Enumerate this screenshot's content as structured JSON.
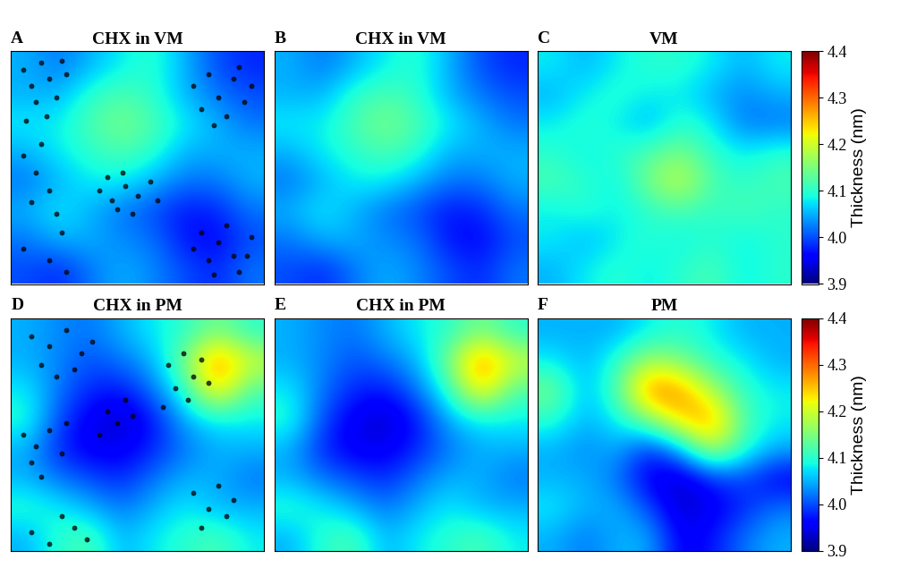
{
  "chart_data": [
    {
      "type": "heatmap",
      "panel": "A",
      "title": "CHX in VM",
      "xlim": [
        0,
        1
      ],
      "ylim": [
        0,
        1
      ],
      "tick_labels": false,
      "cells": [
        [
          4.05,
          4.02,
          4.05,
          4.08,
          4.1,
          4.05,
          4.0,
          3.98
        ],
        [
          4.05,
          4.05,
          4.1,
          4.12,
          4.1,
          4.05,
          4.02,
          4.0
        ],
        [
          4.08,
          4.08,
          4.12,
          4.15,
          4.12,
          4.08,
          4.05,
          4.02
        ],
        [
          4.05,
          4.08,
          4.1,
          4.12,
          4.1,
          4.05,
          4.05,
          4.05
        ],
        [
          4.02,
          4.05,
          4.08,
          4.08,
          4.05,
          4.02,
          4.02,
          4.05
        ],
        [
          4.05,
          4.08,
          4.05,
          4.02,
          4.0,
          3.97,
          3.98,
          4.02
        ],
        [
          4.02,
          4.05,
          4.05,
          4.03,
          4.02,
          3.97,
          3.96,
          4.0
        ],
        [
          4.0,
          3.98,
          4.02,
          4.05,
          4.03,
          4.0,
          3.98,
          4.02
        ]
      ],
      "points": {
        "color": "black",
        "x": [
          0.05,
          0.08,
          0.12,
          0.15,
          0.18,
          0.1,
          0.22,
          0.06,
          0.14,
          0.2,
          0.72,
          0.78,
          0.82,
          0.88,
          0.92,
          0.85,
          0.95,
          0.75,
          0.9,
          0.8,
          0.35,
          0.4,
          0.45,
          0.5,
          0.42,
          0.55,
          0.38,
          0.48,
          0.58,
          0.44,
          0.05,
          0.1,
          0.15,
          0.08,
          0.18,
          0.12,
          0.2,
          0.05,
          0.15,
          0.22,
          0.72,
          0.78,
          0.82,
          0.88,
          0.95,
          0.9,
          0.75,
          0.85,
          0.8,
          0.93
        ],
        "y": [
          0.92,
          0.85,
          0.95,
          0.88,
          0.8,
          0.78,
          0.9,
          0.7,
          0.72,
          0.96,
          0.85,
          0.9,
          0.8,
          0.88,
          0.78,
          0.72,
          0.85,
          0.75,
          0.93,
          0.68,
          0.4,
          0.36,
          0.42,
          0.38,
          0.32,
          0.44,
          0.46,
          0.3,
          0.36,
          0.48,
          0.55,
          0.48,
          0.4,
          0.35,
          0.3,
          0.6,
          0.22,
          0.15,
          0.1,
          0.05,
          0.15,
          0.1,
          0.18,
          0.12,
          0.2,
          0.05,
          0.22,
          0.25,
          0.04,
          0.12
        ]
      }
    },
    {
      "type": "heatmap",
      "panel": "B",
      "title": "CHX in VM",
      "xlim": [
        0,
        1
      ],
      "ylim": [
        0,
        1
      ],
      "tick_labels": false,
      "cells": [
        [
          4.05,
          4.02,
          4.05,
          4.08,
          4.1,
          4.05,
          4.0,
          3.98
        ],
        [
          4.05,
          4.05,
          4.1,
          4.12,
          4.1,
          4.05,
          4.02,
          4.0
        ],
        [
          4.08,
          4.08,
          4.12,
          4.15,
          4.12,
          4.08,
          4.05,
          4.02
        ],
        [
          4.05,
          4.08,
          4.1,
          4.12,
          4.1,
          4.05,
          4.05,
          4.05
        ],
        [
          4.02,
          4.05,
          4.08,
          4.08,
          4.05,
          4.02,
          4.02,
          4.05
        ],
        [
          4.05,
          4.08,
          4.05,
          4.02,
          4.0,
          3.97,
          3.98,
          4.02
        ],
        [
          4.02,
          4.05,
          4.05,
          4.03,
          4.02,
          3.97,
          3.96,
          4.0
        ],
        [
          4.0,
          3.98,
          4.02,
          4.05,
          4.03,
          4.0,
          3.98,
          4.02
        ]
      ]
    },
    {
      "type": "heatmap",
      "panel": "C",
      "title": "VM",
      "xlim": [
        0,
        1
      ],
      "ylim": [
        0,
        1
      ],
      "tick_labels": false,
      "cells": [
        [
          4.08,
          4.05,
          4.08,
          4.1,
          4.1,
          4.08,
          4.05,
          4.08
        ],
        [
          4.05,
          4.08,
          4.1,
          4.08,
          4.08,
          4.05,
          4.03,
          4.05
        ],
        [
          4.08,
          4.1,
          4.08,
          4.05,
          4.1,
          4.08,
          4.02,
          4.02
        ],
        [
          4.1,
          4.08,
          4.1,
          4.12,
          4.15,
          4.1,
          4.08,
          4.1
        ],
        [
          4.12,
          4.1,
          4.08,
          4.15,
          4.2,
          4.12,
          4.1,
          4.12
        ],
        [
          4.08,
          4.1,
          4.08,
          4.1,
          4.12,
          4.1,
          4.12,
          4.1
        ],
        [
          4.08,
          4.05,
          4.08,
          4.1,
          4.08,
          4.1,
          4.08,
          4.1
        ],
        [
          4.05,
          4.08,
          4.1,
          4.08,
          4.1,
          4.12,
          4.08,
          4.1
        ]
      ],
      "colorbar": {
        "label": "Thickness (nm)",
        "range": [
          3.9,
          4.4
        ],
        "ticks": [
          3.9,
          4.0,
          4.1,
          4.2,
          4.3,
          4.4
        ]
      }
    },
    {
      "type": "heatmap",
      "panel": "D",
      "title": "CHX in PM",
      "xlim": [
        0,
        1
      ],
      "ylim": [
        0,
        1
      ],
      "tick_labels": false,
      "cells": [
        [
          4.05,
          4.03,
          4.02,
          4.05,
          4.08,
          4.1,
          4.15,
          4.1
        ],
        [
          4.05,
          4.03,
          4.0,
          4.02,
          4.05,
          4.15,
          4.3,
          4.2
        ],
        [
          4.08,
          4.02,
          3.98,
          3.97,
          4.02,
          4.1,
          4.25,
          4.12
        ],
        [
          4.1,
          4.0,
          3.95,
          3.93,
          3.97,
          4.05,
          4.08,
          4.08
        ],
        [
          4.05,
          3.98,
          3.95,
          3.95,
          3.98,
          4.02,
          4.05,
          4.05
        ],
        [
          4.05,
          4.02,
          4.0,
          3.98,
          4.02,
          4.05,
          4.05,
          4.02
        ],
        [
          4.1,
          4.08,
          4.05,
          4.02,
          4.05,
          4.08,
          4.05,
          4.05
        ],
        [
          4.05,
          4.1,
          4.12,
          4.05,
          4.08,
          4.1,
          4.12,
          4.08
        ]
      ],
      "points": {
        "color": "black",
        "x": [
          0.08,
          0.15,
          0.22,
          0.28,
          0.12,
          0.32,
          0.18,
          0.25,
          0.62,
          0.68,
          0.72,
          0.65,
          0.75,
          0.7,
          0.6,
          0.78,
          0.05,
          0.1,
          0.15,
          0.08,
          0.2,
          0.12,
          0.22,
          0.38,
          0.42,
          0.45,
          0.35,
          0.48,
          0.72,
          0.78,
          0.82,
          0.85,
          0.75,
          0.88,
          0.08,
          0.15,
          0.25,
          0.3,
          0.2
        ],
        "y": [
          0.92,
          0.88,
          0.95,
          0.85,
          0.8,
          0.9,
          0.75,
          0.78,
          0.8,
          0.85,
          0.75,
          0.7,
          0.82,
          0.65,
          0.62,
          0.72,
          0.5,
          0.45,
          0.52,
          0.38,
          0.42,
          0.32,
          0.55,
          0.6,
          0.55,
          0.65,
          0.5,
          0.58,
          0.25,
          0.18,
          0.28,
          0.15,
          0.1,
          0.22,
          0.08,
          0.03,
          0.1,
          0.05,
          0.15
        ]
      }
    },
    {
      "type": "heatmap",
      "panel": "E",
      "title": "CHX in PM",
      "xlim": [
        0,
        1
      ],
      "ylim": [
        0,
        1
      ],
      "tick_labels": false,
      "cells": [
        [
          4.05,
          4.03,
          4.02,
          4.05,
          4.08,
          4.1,
          4.15,
          4.1
        ],
        [
          4.05,
          4.03,
          4.0,
          4.02,
          4.05,
          4.15,
          4.3,
          4.2
        ],
        [
          4.08,
          4.02,
          3.98,
          3.97,
          4.02,
          4.1,
          4.25,
          4.12
        ],
        [
          4.1,
          4.0,
          3.95,
          3.93,
          3.97,
          4.05,
          4.08,
          4.08
        ],
        [
          4.05,
          3.98,
          3.95,
          3.95,
          3.98,
          4.02,
          4.05,
          4.05
        ],
        [
          4.05,
          4.02,
          4.0,
          3.98,
          4.02,
          4.05,
          4.05,
          4.02
        ],
        [
          4.1,
          4.08,
          4.05,
          4.02,
          4.05,
          4.08,
          4.05,
          4.05
        ],
        [
          4.05,
          4.1,
          4.12,
          4.05,
          4.08,
          4.1,
          4.12,
          4.08
        ]
      ]
    },
    {
      "type": "heatmap",
      "panel": "F",
      "title": "PM",
      "xlim": [
        0,
        1
      ],
      "ylim": [
        0,
        1
      ],
      "tick_labels": false,
      "cells": [
        [
          4.05,
          4.05,
          4.05,
          4.08,
          4.1,
          4.08,
          4.05,
          4.05
        ],
        [
          4.08,
          4.05,
          4.1,
          4.18,
          4.15,
          4.1,
          4.08,
          4.05
        ],
        [
          4.15,
          4.05,
          4.12,
          4.3,
          4.28,
          4.18,
          4.1,
          4.08
        ],
        [
          4.1,
          4.05,
          4.08,
          4.15,
          4.25,
          4.28,
          4.12,
          4.08
        ],
        [
          4.05,
          4.03,
          4.05,
          3.98,
          4.05,
          4.2,
          4.1,
          4.05
        ],
        [
          4.05,
          4.05,
          4.02,
          3.95,
          3.93,
          3.98,
          4.0,
          3.95
        ],
        [
          4.08,
          4.05,
          4.05,
          4.0,
          3.93,
          3.95,
          3.98,
          4.02
        ],
        [
          4.05,
          4.02,
          4.05,
          4.05,
          3.95,
          3.97,
          4.02,
          4.05
        ]
      ],
      "colorbar": {
        "label": "Thickness (nm)",
        "range": [
          3.9,
          4.4
        ],
        "ticks": [
          3.9,
          4.0,
          4.1,
          4.2,
          4.3,
          4.4
        ]
      }
    }
  ]
}
